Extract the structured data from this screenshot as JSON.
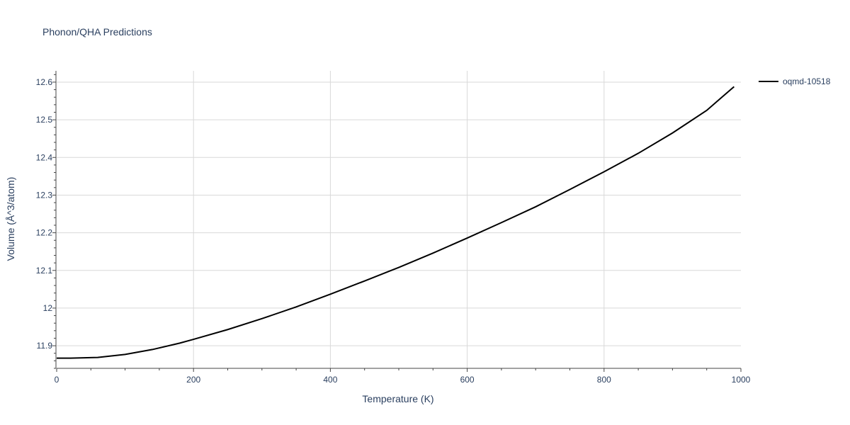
{
  "chart_data": {
    "type": "line",
    "title": "Phonon/QHA Predictions",
    "xlabel": "Temperature (K)",
    "ylabel": "Volume (Å^3/atom)",
    "xlim": [
      0,
      1000
    ],
    "ylim": [
      11.84,
      12.63
    ],
    "x_ticks": [
      0,
      200,
      400,
      600,
      800,
      1000
    ],
    "x_tick_labels": [
      "0",
      "200",
      "400",
      "600",
      "800",
      "1000"
    ],
    "y_ticks": [
      11.9,
      12.0,
      12.1,
      12.2,
      12.3,
      12.4,
      12.5,
      12.6
    ],
    "y_tick_labels": [
      "11.9",
      "12",
      "12.1",
      "12.2",
      "12.3",
      "12.4",
      "12.5",
      "12.6"
    ],
    "grid": true,
    "legend_position": "top-right",
    "series": [
      {
        "name": "oqmd-10518",
        "color": "#000000",
        "x": [
          0,
          20,
          40,
          60,
          80,
          100,
          140,
          180,
          200,
          250,
          300,
          350,
          400,
          450,
          500,
          550,
          600,
          650,
          700,
          750,
          800,
          850,
          900,
          950,
          990
        ],
        "y": [
          11.867,
          11.867,
          11.868,
          11.869,
          11.873,
          11.877,
          11.89,
          11.907,
          11.917,
          11.943,
          11.972,
          12.003,
          12.037,
          12.072,
          12.108,
          12.146,
          12.186,
          12.227,
          12.269,
          12.315,
          12.362,
          12.411,
          12.465,
          12.525,
          12.588
        ]
      }
    ]
  }
}
